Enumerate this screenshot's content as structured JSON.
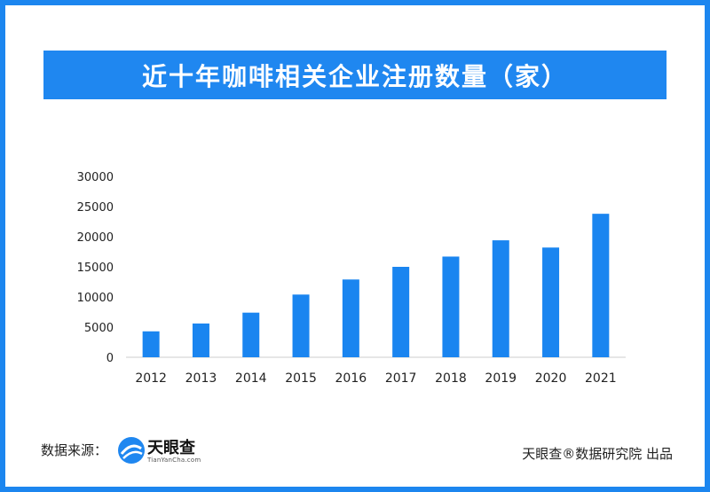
{
  "title": "近十年咖啡相关企业注册数量（家）",
  "footer": {
    "source_label": "数据来源：",
    "logo_name": "天眼查",
    "logo_domain": "TianYanCha.com",
    "credit": "天眼查®数据研究院 出品"
  },
  "colors": {
    "accent": "#1f87f0",
    "border": "#1c86ef",
    "bar": "#1a85f0",
    "axis": "#cccccc"
  },
  "chart_data": {
    "type": "bar",
    "categories": [
      "2012",
      "2013",
      "2014",
      "2015",
      "2016",
      "2017",
      "2018",
      "2019",
      "2020",
      "2021"
    ],
    "series": [
      {
        "values": [
          4300,
          5600,
          7400,
          10400,
          12900,
          15000,
          16700,
          19400,
          18200,
          23800
        ]
      }
    ],
    "title": "近十年咖啡相关企业注册数量（家）",
    "xlabel": "",
    "ylabel": "",
    "ylim": [
      0,
      30000
    ],
    "yticks": [
      "0",
      "5000",
      "10000",
      "15000",
      "20000",
      "25000",
      "30000"
    ],
    "grid": false,
    "legend": "none"
  }
}
